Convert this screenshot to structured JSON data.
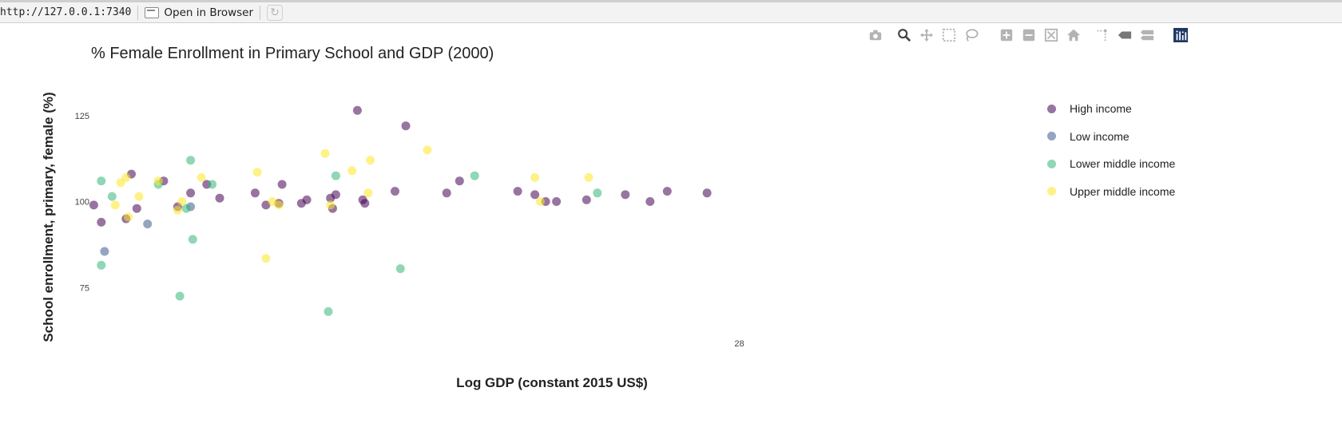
{
  "browser_bar": {
    "url": "http://127.0.0.1:7340",
    "open_in_browser_label": "Open in Browser"
  },
  "modebar": {
    "buttons": [
      {
        "name": "camera-icon"
      },
      {
        "name": "zoom-icon"
      },
      {
        "name": "pan-icon"
      },
      {
        "name": "box-select-icon"
      },
      {
        "name": "lasso-select-icon"
      },
      {
        "name": "zoom-in-icon"
      },
      {
        "name": "zoom-out-icon"
      },
      {
        "name": "autoscale-icon"
      },
      {
        "name": "reset-axes-icon"
      },
      {
        "name": "toggle-spikelines-icon"
      },
      {
        "name": "hover-closest-icon"
      },
      {
        "name": "hover-compare-icon"
      },
      {
        "name": "plotly-logo-icon"
      }
    ]
  },
  "chart_data": {
    "type": "scatter",
    "title": "% Female Enrollment in Primary School and GDP (2000)",
    "xlabel": "Log GDP (constant 2015 US$)",
    "ylabel": "School enrollment, primary, female (%)",
    "y_ticks": [
      75,
      100,
      125
    ],
    "x_ticks": [
      28
    ],
    "xlim": [
      21.96,
      29.8
    ],
    "ylim": [
      56.5,
      147
    ],
    "grid": false,
    "legend_position": "right",
    "series": [
      {
        "name": "High income",
        "color": "#440154",
        "points": [
          [
            22.0,
            99
          ],
          [
            22.07,
            94
          ],
          [
            22.3,
            95
          ],
          [
            22.35,
            108
          ],
          [
            22.4,
            98
          ],
          [
            22.65,
            106
          ],
          [
            22.78,
            98.5
          ],
          [
            22.9,
            102.5
          ],
          [
            23.05,
            105
          ],
          [
            23.17,
            101
          ],
          [
            23.5,
            102.5
          ],
          [
            23.6,
            99
          ],
          [
            23.72,
            99.5
          ],
          [
            23.75,
            105
          ],
          [
            23.93,
            99.5
          ],
          [
            23.98,
            100.5
          ],
          [
            24.2,
            101
          ],
          [
            24.22,
            98
          ],
          [
            24.25,
            102
          ],
          [
            24.45,
            126.5
          ],
          [
            24.5,
            100.5
          ],
          [
            24.52,
            99.5
          ],
          [
            24.8,
            103
          ],
          [
            24.9,
            122
          ],
          [
            25.28,
            102.5
          ],
          [
            25.4,
            106
          ],
          [
            25.94,
            103
          ],
          [
            26.1,
            102
          ],
          [
            26.2,
            100
          ],
          [
            26.3,
            100
          ],
          [
            26.58,
            100.5
          ],
          [
            26.94,
            102
          ],
          [
            27.17,
            100
          ],
          [
            27.33,
            103
          ],
          [
            27.7,
            102.5
          ]
        ]
      },
      {
        "name": "Low income",
        "color": "#3b5b8c",
        "points": [
          [
            22.1,
            85.5
          ],
          [
            22.5,
            93.5
          ],
          [
            22.9,
            98.5
          ]
        ]
      },
      {
        "name": "Lower middle income",
        "color": "#35b779",
        "points": [
          [
            22.07,
            106
          ],
          [
            22.07,
            81.5
          ],
          [
            22.17,
            101.5
          ],
          [
            22.6,
            105
          ],
          [
            22.8,
            72.5
          ],
          [
            22.86,
            98
          ],
          [
            22.9,
            112
          ],
          [
            22.92,
            89
          ],
          [
            23.1,
            105
          ],
          [
            24.18,
            68
          ],
          [
            24.25,
            107.5
          ],
          [
            24.85,
            80.5
          ],
          [
            25.54,
            107.5
          ],
          [
            26.68,
            102.5
          ]
        ]
      },
      {
        "name": "Upper middle income",
        "color": "#fde725",
        "points": [
          [
            22.2,
            99
          ],
          [
            22.25,
            105.5
          ],
          [
            22.3,
            107
          ],
          [
            22.32,
            95.5
          ],
          [
            22.42,
            101.5
          ],
          [
            22.6,
            106
          ],
          [
            22.78,
            97.5
          ],
          [
            22.82,
            100
          ],
          [
            23.0,
            107
          ],
          [
            23.52,
            108.5
          ],
          [
            23.6,
            83.5
          ],
          [
            23.66,
            100
          ],
          [
            23.72,
            99
          ],
          [
            24.15,
            114
          ],
          [
            24.2,
            99
          ],
          [
            24.4,
            109
          ],
          [
            24.55,
            102.5
          ],
          [
            24.57,
            112
          ],
          [
            25.1,
            115
          ],
          [
            26.1,
            107
          ],
          [
            26.15,
            100
          ],
          [
            26.6,
            107
          ]
        ]
      }
    ]
  }
}
